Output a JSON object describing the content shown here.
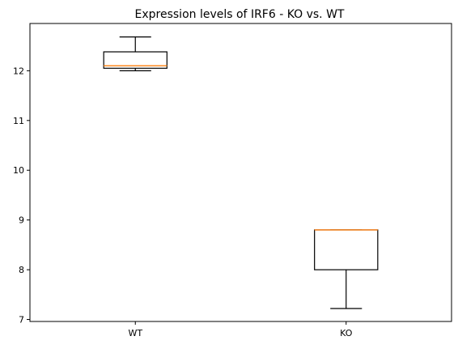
{
  "chart_data": {
    "type": "box",
    "title": "Expression levels of IRF6 - KO vs. WT",
    "xlabel": "",
    "ylabel": "",
    "categories": [
      "WT",
      "KO"
    ],
    "boxes": [
      {
        "label": "WT",
        "whisker_low": 12.0,
        "q1": 12.05,
        "median": 12.1,
        "q3": 12.38,
        "whisker_high": 12.68
      },
      {
        "label": "KO",
        "whisker_low": 7.22,
        "q1": 8.0,
        "median": 8.8,
        "q3": 8.8,
        "whisker_high": 8.8
      }
    ],
    "ylim": [
      6.96,
      12.95
    ],
    "yticks": [
      7,
      8,
      9,
      10,
      11,
      12
    ],
    "grid": false,
    "colors": {
      "box": "#000000",
      "median": "#ff7f0e",
      "axes": "#000000"
    }
  }
}
